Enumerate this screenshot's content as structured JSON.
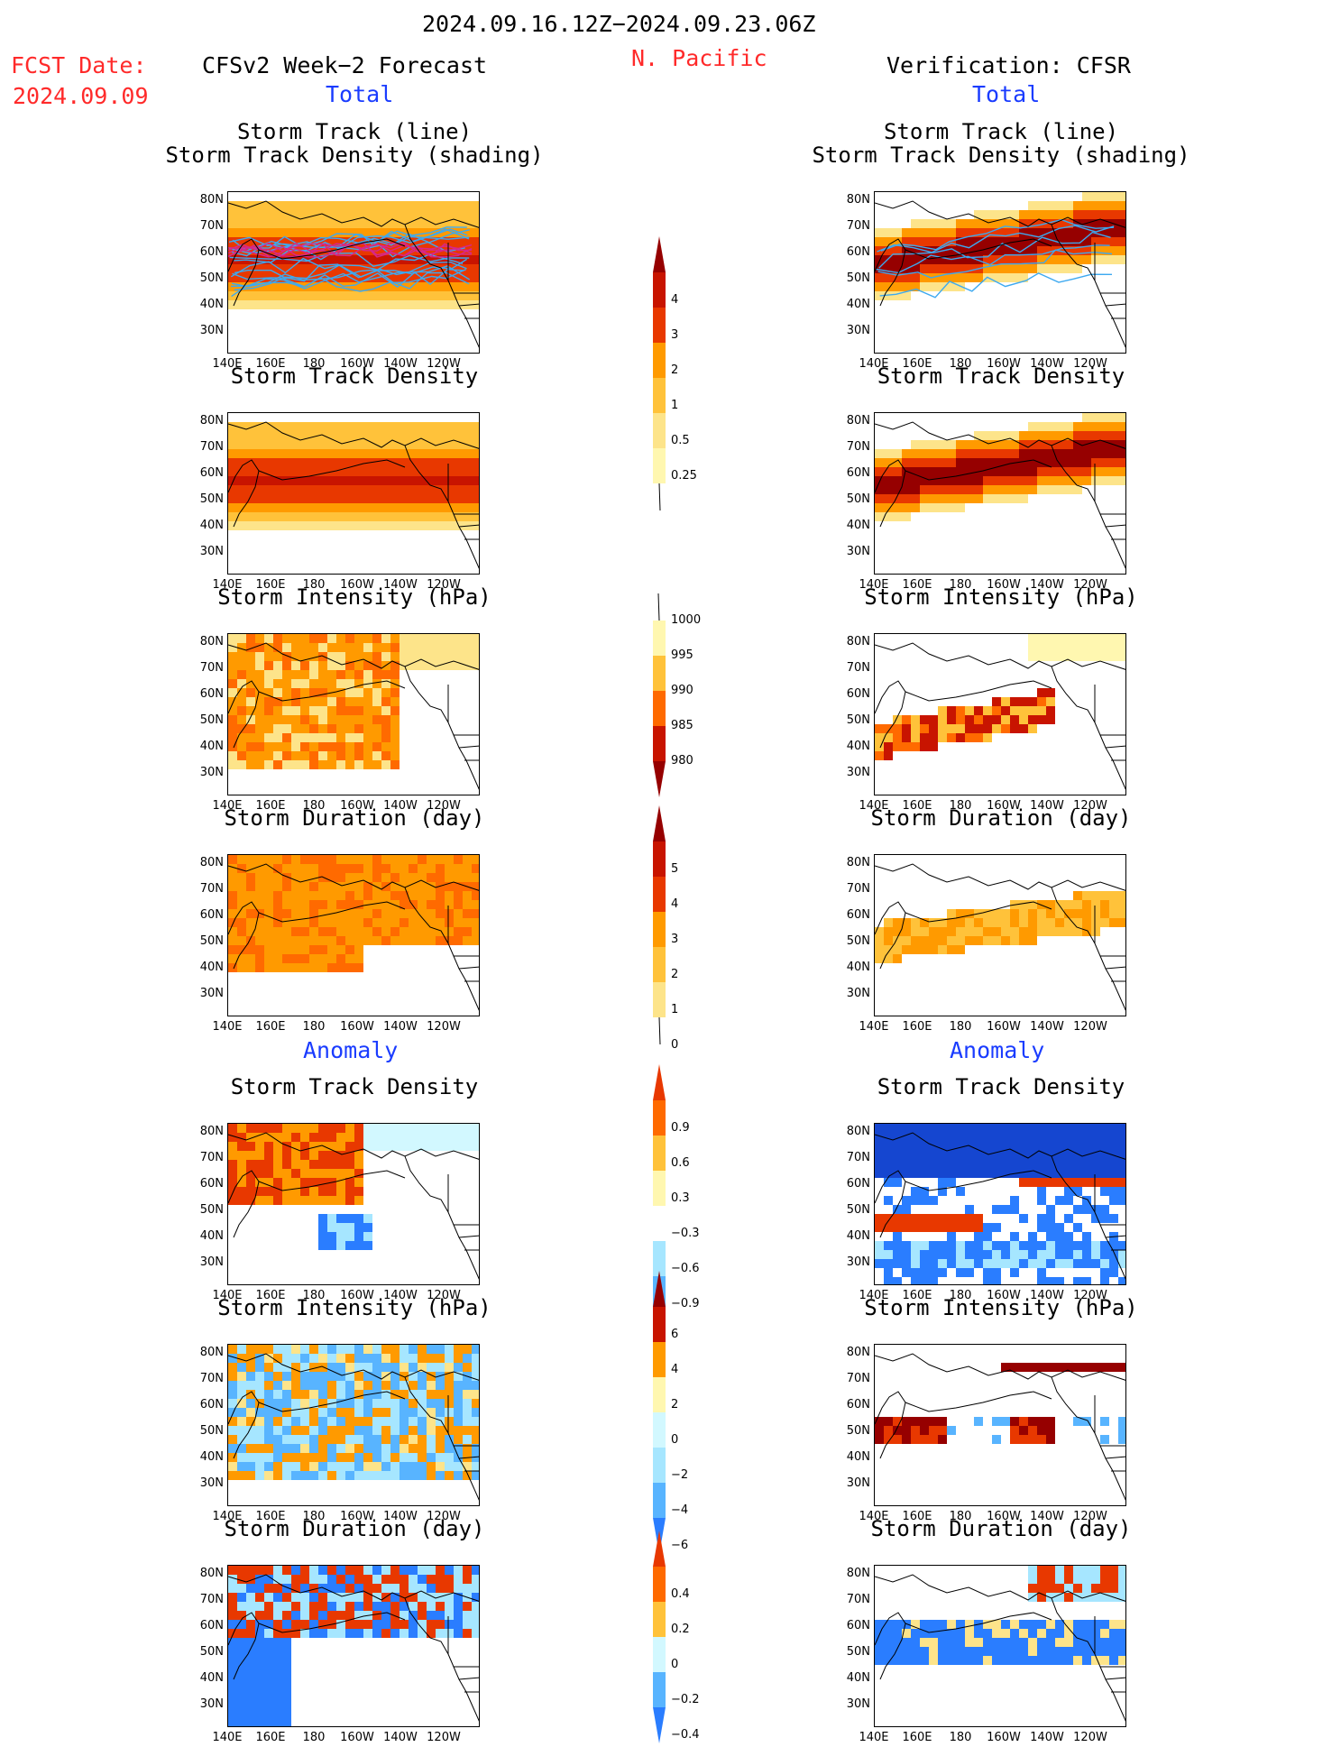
{
  "header": {
    "period": "2024.09.16.12Z−2024.09.23.06Z",
    "fcst_label": "FCST Date:",
    "fcst_date": "2024.09.09",
    "left_title": "CFSv2 Week−2 Forecast",
    "region": "N. Pacific",
    "right_title": "Verification: CFSR",
    "total_left": "Total",
    "total_right": "Total",
    "anomaly_left": "Anomaly",
    "anomaly_right": "Anomaly"
  },
  "titles": {
    "track_line": "Storm Track (line)",
    "track_density_shading": "Storm Track Density (shading)",
    "track_density": "Storm Track Density",
    "intensity": "Storm Intensity (hPa)",
    "duration": "Storm Duration (day)"
  },
  "axes": {
    "lat_labels": [
      "80N",
      "70N",
      "60N",
      "50N",
      "40N",
      "30N"
    ],
    "lon_labels": [
      "140E",
      "160E",
      "180",
      "160W",
      "140W",
      "120W"
    ]
  },
  "colorbars": {
    "density": [
      "4",
      "3",
      "2",
      "1",
      "0.5",
      "0.25"
    ],
    "intensity": [
      "1000",
      "995",
      "990",
      "985",
      "980"
    ],
    "duration": [
      "5",
      "4",
      "3",
      "2",
      "1",
      "0"
    ],
    "density_anom": [
      "0.9",
      "0.6",
      "0.3",
      "−0.3",
      "−0.6",
      "−0.9"
    ],
    "intensity_anom": [
      "6",
      "4",
      "2",
      "0",
      "−2",
      "−4",
      "−6"
    ],
    "duration_anom": [
      "0.4",
      "0.2",
      "0",
      "−0.2",
      "−0.4"
    ]
  },
  "colors": {
    "warm": [
      "#fff7b0",
      "#fde48a",
      "#ffc23a",
      "#ff9a00",
      "#ff6a00",
      "#e83800",
      "#c81400",
      "#960000"
    ],
    "cool": [
      "#d2f8ff",
      "#a6e6ff",
      "#58b4ff",
      "#2a7dff",
      "#1546d0"
    ],
    "track_fcst": "#3da9f0",
    "track_mean": "#d6278a"
  }
}
